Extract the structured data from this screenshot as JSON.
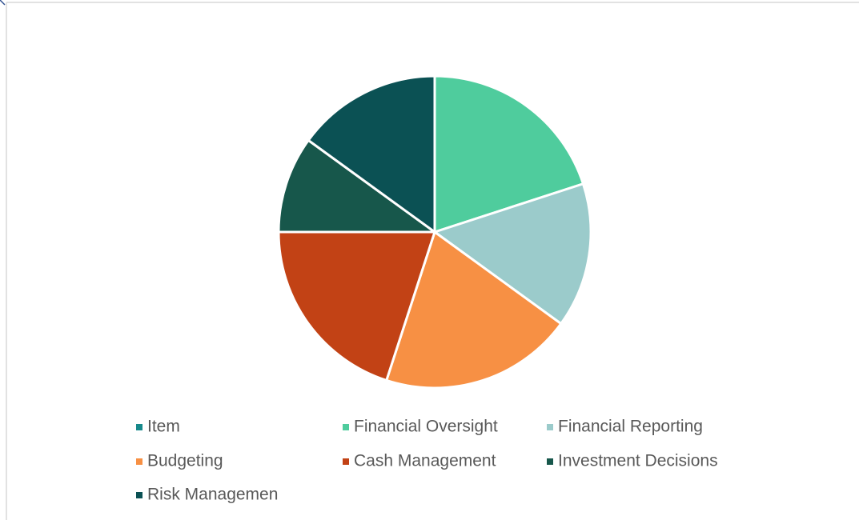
{
  "chart_data": {
    "type": "pie",
    "categories": [
      "Item",
      "Financial Oversight",
      "Financial Reporting",
      "Budgeting",
      "Cash Management",
      "Investment Decisions",
      "Risk Managemen"
    ],
    "values": [
      0,
      20,
      15,
      20,
      20,
      10,
      15
    ],
    "colors": [
      "#17898b",
      "#4fcc9d",
      "#9bcbcb",
      "#f79044",
      "#c24215",
      "#17574b",
      "#0b5154"
    ],
    "legend": "bottom"
  }
}
